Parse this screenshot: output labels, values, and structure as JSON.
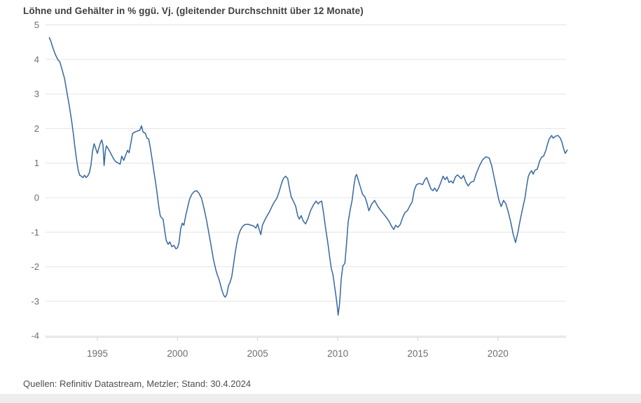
{
  "header": {
    "title": "Löhne und Gehälter in % ggü. Vj. (gleitender Durchschnitt über 12 Monate)"
  },
  "footer": {
    "source": "Quellen: Refinitiv Datastream, Metzler; Stand: 30.4.2024"
  },
  "chart_data": {
    "type": "line",
    "title": "Löhne und Gehälter in % ggü. Vj. (gleitender Durchschnitt über 12 Monate)",
    "xlabel": "",
    "ylabel": "",
    "xlim": [
      1991.75,
      2024.45
    ],
    "ylim": [
      -4,
      5
    ],
    "x_ticks": [
      1995,
      2000,
      2005,
      2010,
      2015,
      2020
    ],
    "y_ticks": [
      5,
      4,
      3,
      2,
      1,
      0,
      -1,
      -2,
      -3,
      -4
    ],
    "grid": "horizontal",
    "legend": "none",
    "colors": {
      "line": "#36679f",
      "gridline": "#e4e4e4",
      "axis_line": "#cfcfcf",
      "tick_label": "#6e6e6e"
    },
    "series": [
      {
        "name": "Löhne und Gehälter, % ggü. Vj. (gleitender 12-Monats-Durchschnitt)",
        "color": "#36679f",
        "points": [
          [
            1992.0,
            4.63
          ],
          [
            1992.1,
            4.52
          ],
          [
            1992.25,
            4.3
          ],
          [
            1992.4,
            4.12
          ],
          [
            1992.55,
            3.98
          ],
          [
            1992.65,
            3.94
          ],
          [
            1992.8,
            3.7
          ],
          [
            1992.95,
            3.45
          ],
          [
            1993.1,
            3.05
          ],
          [
            1993.25,
            2.65
          ],
          [
            1993.4,
            2.2
          ],
          [
            1993.5,
            1.85
          ],
          [
            1993.6,
            1.45
          ],
          [
            1993.7,
            1.1
          ],
          [
            1993.8,
            0.8
          ],
          [
            1993.9,
            0.65
          ],
          [
            1994.0,
            0.62
          ],
          [
            1994.1,
            0.58
          ],
          [
            1994.2,
            0.65
          ],
          [
            1994.3,
            0.58
          ],
          [
            1994.4,
            0.63
          ],
          [
            1994.5,
            0.72
          ],
          [
            1994.6,
            0.95
          ],
          [
            1994.7,
            1.35
          ],
          [
            1994.8,
            1.56
          ],
          [
            1994.9,
            1.42
          ],
          [
            1995.0,
            1.28
          ],
          [
            1995.1,
            1.45
          ],
          [
            1995.2,
            1.6
          ],
          [
            1995.27,
            1.67
          ],
          [
            1995.35,
            1.52
          ],
          [
            1995.42,
            0.93
          ],
          [
            1995.5,
            1.35
          ],
          [
            1995.57,
            1.5
          ],
          [
            1995.7,
            1.4
          ],
          [
            1995.85,
            1.27
          ],
          [
            1996.0,
            1.13
          ],
          [
            1996.15,
            1.04
          ],
          [
            1996.3,
            1.0
          ],
          [
            1996.42,
            0.97
          ],
          [
            1996.52,
            1.2
          ],
          [
            1996.65,
            1.08
          ],
          [
            1996.78,
            1.25
          ],
          [
            1996.88,
            1.37
          ],
          [
            1996.98,
            1.3
          ],
          [
            1997.1,
            1.6
          ],
          [
            1997.2,
            1.86
          ],
          [
            1997.35,
            1.9
          ],
          [
            1997.5,
            1.93
          ],
          [
            1997.65,
            1.95
          ],
          [
            1997.75,
            2.08
          ],
          [
            1997.85,
            1.9
          ],
          [
            1998.0,
            1.86
          ],
          [
            1998.1,
            1.72
          ],
          [
            1998.2,
            1.7
          ],
          [
            1998.3,
            1.45
          ],
          [
            1998.42,
            1.1
          ],
          [
            1998.52,
            0.78
          ],
          [
            1998.62,
            0.48
          ],
          [
            1998.72,
            0.15
          ],
          [
            1998.82,
            -0.22
          ],
          [
            1998.92,
            -0.52
          ],
          [
            1999.0,
            -0.58
          ],
          [
            1999.1,
            -0.62
          ],
          [
            1999.2,
            -0.95
          ],
          [
            1999.3,
            -1.24
          ],
          [
            1999.42,
            -1.35
          ],
          [
            1999.52,
            -1.28
          ],
          [
            1999.65,
            -1.42
          ],
          [
            1999.78,
            -1.38
          ],
          [
            1999.9,
            -1.48
          ],
          [
            2000.0,
            -1.45
          ],
          [
            2000.1,
            -1.3
          ],
          [
            2000.2,
            -0.9
          ],
          [
            2000.3,
            -0.74
          ],
          [
            2000.4,
            -0.8
          ],
          [
            2000.5,
            -0.55
          ],
          [
            2000.62,
            -0.31
          ],
          [
            2000.75,
            -0.05
          ],
          [
            2000.9,
            0.1
          ],
          [
            2001.05,
            0.18
          ],
          [
            2001.2,
            0.2
          ],
          [
            2001.35,
            0.12
          ],
          [
            2001.5,
            -0.02
          ],
          [
            2001.65,
            -0.3
          ],
          [
            2001.8,
            -0.62
          ],
          [
            2001.95,
            -1.0
          ],
          [
            2002.1,
            -1.4
          ],
          [
            2002.25,
            -1.8
          ],
          [
            2002.4,
            -2.1
          ],
          [
            2002.5,
            -2.25
          ],
          [
            2002.6,
            -2.38
          ],
          [
            2002.7,
            -2.55
          ],
          [
            2002.8,
            -2.72
          ],
          [
            2002.9,
            -2.84
          ],
          [
            2002.98,
            -2.88
          ],
          [
            2003.08,
            -2.8
          ],
          [
            2003.18,
            -2.55
          ],
          [
            2003.28,
            -2.45
          ],
          [
            2003.38,
            -2.3
          ],
          [
            2003.48,
            -2.0
          ],
          [
            2003.6,
            -1.6
          ],
          [
            2003.7,
            -1.32
          ],
          [
            2003.8,
            -1.1
          ],
          [
            2003.92,
            -0.95
          ],
          [
            2004.05,
            -0.84
          ],
          [
            2004.2,
            -0.78
          ],
          [
            2004.4,
            -0.77
          ],
          [
            2004.6,
            -0.8
          ],
          [
            2004.75,
            -0.82
          ],
          [
            2004.9,
            -0.88
          ],
          [
            2005.0,
            -0.76
          ],
          [
            2005.12,
            -0.95
          ],
          [
            2005.2,
            -1.07
          ],
          [
            2005.3,
            -0.8
          ],
          [
            2005.45,
            -0.65
          ],
          [
            2005.6,
            -0.52
          ],
          [
            2005.75,
            -0.4
          ],
          [
            2005.9,
            -0.25
          ],
          [
            2006.05,
            -0.12
          ],
          [
            2006.2,
            -0.02
          ],
          [
            2006.35,
            0.18
          ],
          [
            2006.5,
            0.42
          ],
          [
            2006.62,
            0.56
          ],
          [
            2006.75,
            0.62
          ],
          [
            2006.88,
            0.55
          ],
          [
            2007.0,
            0.25
          ],
          [
            2007.1,
            0.02
          ],
          [
            2007.25,
            -0.12
          ],
          [
            2007.38,
            -0.25
          ],
          [
            2007.5,
            -0.52
          ],
          [
            2007.6,
            -0.62
          ],
          [
            2007.72,
            -0.52
          ],
          [
            2007.85,
            -0.68
          ],
          [
            2008.0,
            -0.76
          ],
          [
            2008.15,
            -0.6
          ],
          [
            2008.3,
            -0.38
          ],
          [
            2008.5,
            -0.2
          ],
          [
            2008.65,
            -0.1
          ],
          [
            2008.78,
            -0.18
          ],
          [
            2008.9,
            -0.12
          ],
          [
            2009.0,
            -0.1
          ],
          [
            2009.12,
            -0.45
          ],
          [
            2009.25,
            -0.9
          ],
          [
            2009.38,
            -1.3
          ],
          [
            2009.5,
            -1.72
          ],
          [
            2009.6,
            -2.05
          ],
          [
            2009.7,
            -2.22
          ],
          [
            2009.8,
            -2.55
          ],
          [
            2009.9,
            -2.88
          ],
          [
            2009.97,
            -3.15
          ],
          [
            2010.03,
            -3.4
          ],
          [
            2010.12,
            -3.05
          ],
          [
            2010.22,
            -2.35
          ],
          [
            2010.32,
            -1.98
          ],
          [
            2010.45,
            -1.9
          ],
          [
            2010.55,
            -1.35
          ],
          [
            2010.65,
            -0.72
          ],
          [
            2010.78,
            -0.35
          ],
          [
            2010.9,
            -0.08
          ],
          [
            2011.0,
            0.3
          ],
          [
            2011.1,
            0.6
          ],
          [
            2011.18,
            0.67
          ],
          [
            2011.3,
            0.48
          ],
          [
            2011.4,
            0.33
          ],
          [
            2011.55,
            0.1
          ],
          [
            2011.7,
            0.02
          ],
          [
            2011.82,
            -0.15
          ],
          [
            2011.95,
            -0.38
          ],
          [
            2012.1,
            -0.2
          ],
          [
            2012.3,
            -0.08
          ],
          [
            2012.5,
            -0.25
          ],
          [
            2012.7,
            -0.38
          ],
          [
            2012.88,
            -0.48
          ],
          [
            2013.05,
            -0.58
          ],
          [
            2013.2,
            -0.68
          ],
          [
            2013.35,
            -0.82
          ],
          [
            2013.5,
            -0.92
          ],
          [
            2013.62,
            -0.8
          ],
          [
            2013.75,
            -0.86
          ],
          [
            2013.9,
            -0.78
          ],
          [
            2014.05,
            -0.58
          ],
          [
            2014.2,
            -0.43
          ],
          [
            2014.35,
            -0.38
          ],
          [
            2014.5,
            -0.24
          ],
          [
            2014.65,
            -0.12
          ],
          [
            2014.78,
            0.22
          ],
          [
            2014.92,
            0.38
          ],
          [
            2015.1,
            0.41
          ],
          [
            2015.3,
            0.38
          ],
          [
            2015.45,
            0.53
          ],
          [
            2015.55,
            0.58
          ],
          [
            2015.7,
            0.4
          ],
          [
            2015.82,
            0.25
          ],
          [
            2015.95,
            0.2
          ],
          [
            2016.05,
            0.28
          ],
          [
            2016.18,
            0.18
          ],
          [
            2016.3,
            0.28
          ],
          [
            2016.45,
            0.46
          ],
          [
            2016.58,
            0.62
          ],
          [
            2016.7,
            0.52
          ],
          [
            2016.82,
            0.6
          ],
          [
            2016.95,
            0.44
          ],
          [
            2017.08,
            0.48
          ],
          [
            2017.2,
            0.42
          ],
          [
            2017.35,
            0.6
          ],
          [
            2017.48,
            0.66
          ],
          [
            2017.6,
            0.6
          ],
          [
            2017.72,
            0.55
          ],
          [
            2017.85,
            0.64
          ],
          [
            2018.0,
            0.45
          ],
          [
            2018.15,
            0.34
          ],
          [
            2018.3,
            0.44
          ],
          [
            2018.5,
            0.48
          ],
          [
            2018.65,
            0.7
          ],
          [
            2018.85,
            0.92
          ],
          [
            2019.05,
            1.1
          ],
          [
            2019.25,
            1.18
          ],
          [
            2019.45,
            1.15
          ],
          [
            2019.6,
            0.95
          ],
          [
            2019.75,
            0.62
          ],
          [
            2019.9,
            0.28
          ],
          [
            2020.05,
            -0.05
          ],
          [
            2020.2,
            -0.26
          ],
          [
            2020.35,
            -0.08
          ],
          [
            2020.5,
            -0.18
          ],
          [
            2020.65,
            -0.42
          ],
          [
            2020.8,
            -0.7
          ],
          [
            2020.95,
            -1.05
          ],
          [
            2021.1,
            -1.3
          ],
          [
            2021.25,
            -1.0
          ],
          [
            2021.4,
            -0.62
          ],
          [
            2021.55,
            -0.3
          ],
          [
            2021.7,
            0.02
          ],
          [
            2021.8,
            0.35
          ],
          [
            2021.9,
            0.62
          ],
          [
            2022.0,
            0.72
          ],
          [
            2022.1,
            0.78
          ],
          [
            2022.2,
            0.68
          ],
          [
            2022.32,
            0.8
          ],
          [
            2022.45,
            0.82
          ],
          [
            2022.6,
            1.05
          ],
          [
            2022.72,
            1.17
          ],
          [
            2022.85,
            1.2
          ],
          [
            2023.0,
            1.38
          ],
          [
            2023.1,
            1.55
          ],
          [
            2023.2,
            1.7
          ],
          [
            2023.35,
            1.8
          ],
          [
            2023.45,
            1.72
          ],
          [
            2023.6,
            1.78
          ],
          [
            2023.75,
            1.8
          ],
          [
            2023.9,
            1.72
          ],
          [
            2024.0,
            1.6
          ],
          [
            2024.1,
            1.42
          ],
          [
            2024.2,
            1.28
          ],
          [
            2024.33,
            1.38
          ]
        ]
      }
    ]
  }
}
